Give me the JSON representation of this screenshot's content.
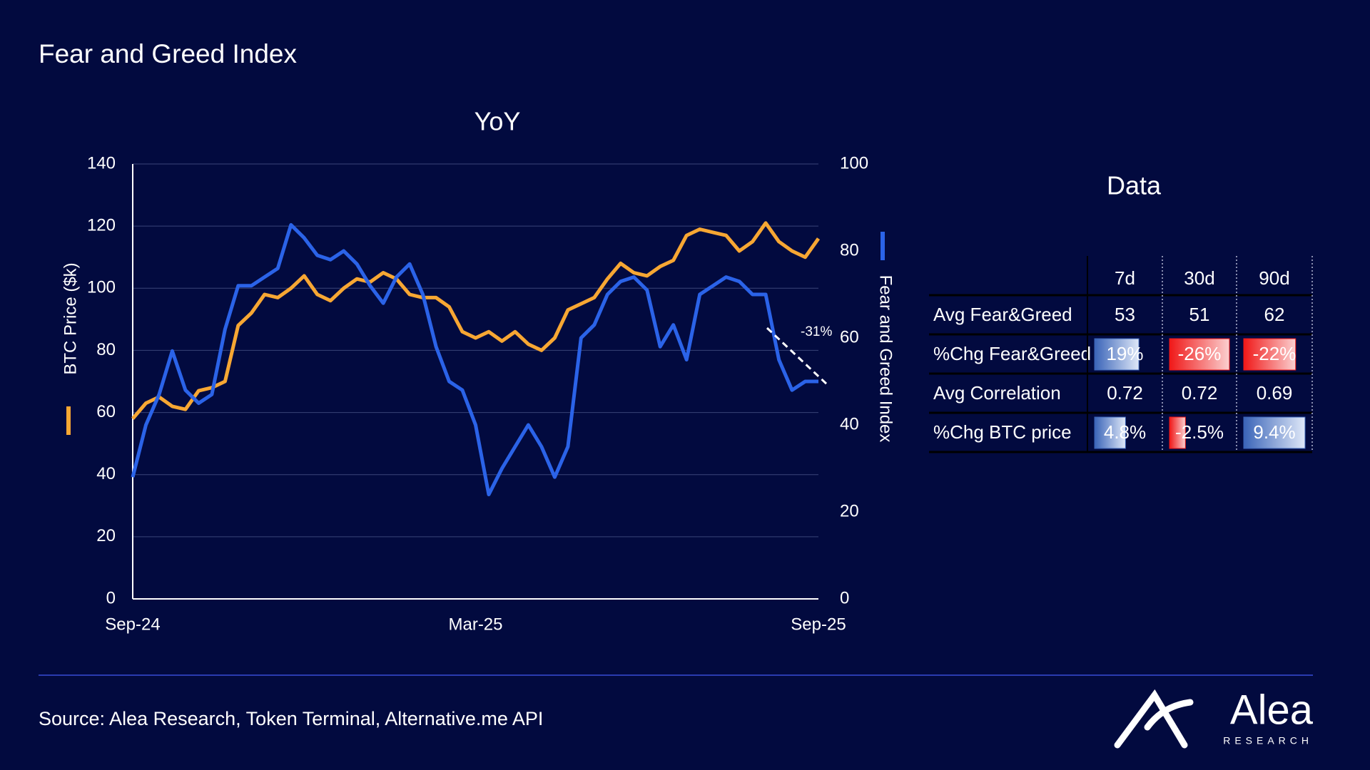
{
  "header": {
    "title": "Fear and Greed Index"
  },
  "chart_data": {
    "type": "line",
    "title": "YoY",
    "x_labels": [
      "Sep-24",
      "Mar-25",
      "Sep-25"
    ],
    "y_label": "BTC Price ($k)",
    "y2_label": "Fear and Greed Index",
    "ylim": [
      0,
      140
    ],
    "yticks": [
      0,
      20,
      40,
      60,
      80,
      100,
      120,
      140
    ],
    "y2lim": [
      0,
      100
    ],
    "y2ticks": [
      0,
      20,
      40,
      60,
      80,
      100
    ],
    "grid": true,
    "annotation": "-31%",
    "series": [
      {
        "name": "BTC Price ($k)",
        "color": "#f7a733",
        "axis": "y",
        "values": [
          58,
          63,
          65,
          62,
          61,
          67,
          68,
          70,
          88,
          92,
          98,
          97,
          100,
          104,
          98,
          96,
          100,
          103,
          102,
          105,
          103,
          98,
          97,
          97,
          94,
          86,
          84,
          86,
          83,
          86,
          82,
          80,
          84,
          93,
          95,
          97,
          103,
          108,
          105,
          104,
          107,
          109,
          117,
          119,
          118,
          117,
          112,
          115,
          121,
          115,
          112,
          110,
          116
        ]
      },
      {
        "name": "Fear and Greed Index",
        "color": "#2b63e8",
        "axis": "y2",
        "values": [
          28,
          40,
          47,
          57,
          48,
          45,
          47,
          62,
          72,
          72,
          74,
          76,
          86,
          83,
          79,
          78,
          80,
          77,
          72,
          68,
          74,
          77,
          70,
          58,
          50,
          48,
          40,
          24,
          30,
          35,
          40,
          35,
          28,
          35,
          60,
          63,
          70,
          73,
          74,
          71,
          58,
          63,
          55,
          70,
          72,
          74,
          73,
          70,
          70,
          55,
          48,
          50,
          50
        ]
      }
    ]
  },
  "table": {
    "title": "Data",
    "columns": [
      "7d",
      "30d",
      "90d"
    ],
    "rows": [
      {
        "label": "Avg Fear&Greed",
        "values": [
          53,
          51,
          62
        ],
        "data_bars": false
      },
      {
        "label": "%Chg Fear&Greed",
        "values": [
          19,
          -26,
          -22
        ],
        "value_labels": [
          "19%",
          "-26%",
          "-22%"
        ],
        "data_bars": true
      },
      {
        "label": "Avg Correlation",
        "values": [
          0.72,
          0.72,
          0.69
        ],
        "data_bars": false
      },
      {
        "label": "%Chg BTC price",
        "values": [
          4.8,
          -2.5,
          9.4
        ],
        "value_labels": [
          "4.8%",
          "-2.5%",
          "9.4%"
        ],
        "data_bars": true
      }
    ]
  },
  "footer": {
    "source": "Source: Alea Research, Token Terminal, Alternative.me API",
    "brand": "Alea",
    "brand_sub": "RESEARCH"
  }
}
